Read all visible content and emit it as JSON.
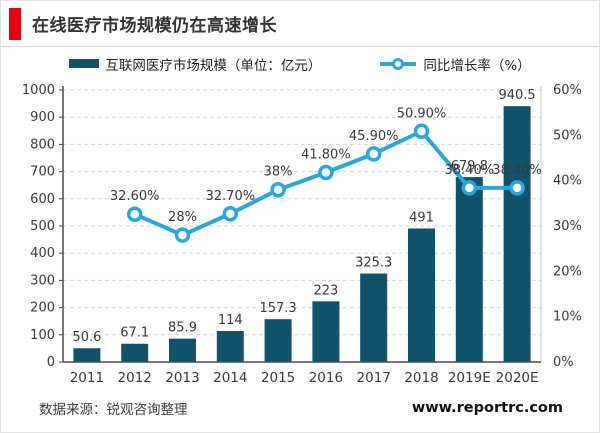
{
  "header": {
    "title": "在线医疗市场规模仍在高速增长"
  },
  "legend": {
    "market": "互联网医疗市场规模（单位：亿元）",
    "growth": "同比增长率（%）"
  },
  "colors": {
    "bar": "#11536C",
    "line": "#2AA6DB",
    "accent_red": "#E60012",
    "grid": "#D5D5D5",
    "axis_dark": "#4A4A4A",
    "axis_light": "#C9C9C9",
    "label": "#3A3A3A"
  },
  "chart_data": {
    "type": "bar",
    "subtype": "bar+line combo, dual axis",
    "title": "在线医疗市场规模仍在高速增长",
    "categories": [
      "2011",
      "2012",
      "2013",
      "2014",
      "2015",
      "2016",
      "2017",
      "2018",
      "2019E",
      "2020E"
    ],
    "series": [
      {
        "name": "互联网医疗市场规模（单位：亿元）",
        "type": "bar",
        "axis": "left",
        "color": "#11536C",
        "values": [
          50.6,
          67.1,
          85.9,
          114,
          157.3,
          223,
          325.3,
          491,
          679.8,
          940.5
        ],
        "labels": [
          "50.6",
          "67.1",
          "85.9",
          "114",
          "157.3",
          "223",
          "325.3",
          "491",
          "679.8",
          "940.5"
        ]
      },
      {
        "name": "同比增长率（%）",
        "type": "line",
        "axis": "right",
        "color": "#2AA6DB",
        "values": [
          null,
          32.6,
          28,
          32.7,
          38,
          41.8,
          45.9,
          50.9,
          38.4,
          38.4
        ],
        "labels": [
          null,
          "32.60%",
          "28%",
          "32.70%",
          "38%",
          "41.80%",
          "45.90%",
          "50.90%",
          "38.40%",
          "38.40%"
        ]
      }
    ],
    "left_axis": {
      "min": 0,
      "max": 1000,
      "step": 100,
      "ticks": [
        "0",
        "100",
        "200",
        "300",
        "400",
        "500",
        "600",
        "700",
        "800",
        "900",
        "1000"
      ]
    },
    "right_axis": {
      "min": 0,
      "max": 60,
      "step": 10,
      "ticks": [
        "0%",
        "10%",
        "20%",
        "30%",
        "40%",
        "50%",
        "60%"
      ]
    },
    "grid": "horizontal-dashed",
    "legend_position": "top"
  },
  "footer": {
    "source": "数据来源：锐观咨询整理",
    "website": "www.reportrc.com"
  }
}
